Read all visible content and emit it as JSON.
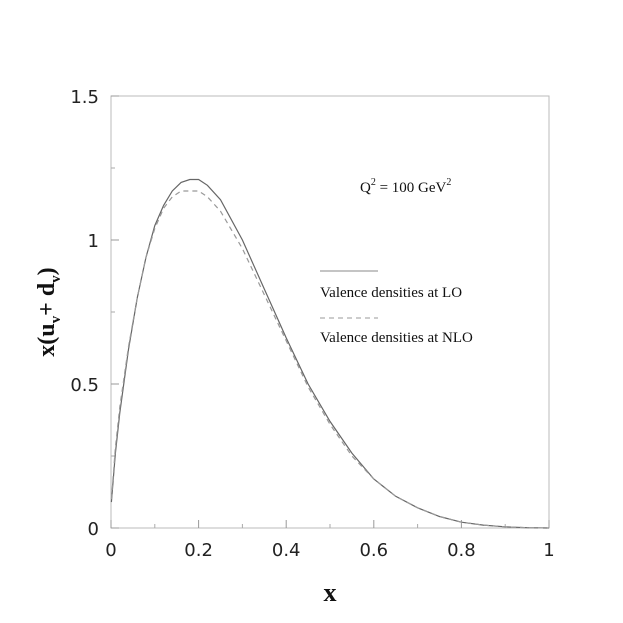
{
  "chart_data": {
    "type": "line",
    "xlabel": "x",
    "ylabel_main": "x(u",
    "ylabel_sub1": "v",
    "ylabel_mid": "+ d",
    "ylabel_sub2": "v",
    "ylabel_end": ")",
    "xlim": [
      0,
      1
    ],
    "ylim": [
      0,
      1.5
    ],
    "x_ticks": [
      0,
      0.2,
      0.4,
      0.6,
      0.8,
      1
    ],
    "x_tick_labels": [
      "0",
      "0.2",
      "0.4",
      "0.6",
      "0.8",
      "1"
    ],
    "y_ticks": [
      0,
      0.5,
      1,
      1.5
    ],
    "y_tick_labels": [
      "0",
      "0.5",
      "1",
      "1.5"
    ],
    "grid": false,
    "annotation": {
      "q": "Q",
      "q_sup": "2",
      "mid": " = 100 GeV",
      "unit_sup": "2"
    },
    "series": [
      {
        "name": "Valence densities at LO",
        "style": "solid",
        "color": "#666666",
        "x": [
          0.001,
          0.01,
          0.02,
          0.04,
          0.06,
          0.08,
          0.1,
          0.12,
          0.14,
          0.16,
          0.18,
          0.2,
          0.22,
          0.25,
          0.3,
          0.35,
          0.4,
          0.45,
          0.5,
          0.55,
          0.6,
          0.65,
          0.7,
          0.75,
          0.8,
          0.85,
          0.9,
          0.95,
          1.0
        ],
        "y": [
          0.09,
          0.26,
          0.4,
          0.62,
          0.8,
          0.94,
          1.05,
          1.12,
          1.17,
          1.2,
          1.21,
          1.21,
          1.19,
          1.14,
          1.0,
          0.83,
          0.66,
          0.5,
          0.37,
          0.26,
          0.17,
          0.11,
          0.07,
          0.04,
          0.02,
          0.01,
          0.004,
          0.001,
          0.0
        ]
      },
      {
        "name": "Valence densities at NLO",
        "style": "dashed",
        "color": "#999999",
        "x": [
          0.001,
          0.01,
          0.02,
          0.04,
          0.06,
          0.08,
          0.1,
          0.12,
          0.14,
          0.16,
          0.18,
          0.2,
          0.22,
          0.25,
          0.3,
          0.35,
          0.4,
          0.45,
          0.5,
          0.55,
          0.6,
          0.65,
          0.7,
          0.75,
          0.8,
          0.85,
          0.9,
          0.95,
          1.0
        ],
        "y": [
          0.1,
          0.28,
          0.42,
          0.63,
          0.8,
          0.94,
          1.04,
          1.11,
          1.15,
          1.17,
          1.17,
          1.17,
          1.15,
          1.1,
          0.97,
          0.81,
          0.65,
          0.49,
          0.36,
          0.25,
          0.17,
          0.11,
          0.07,
          0.04,
          0.02,
          0.01,
          0.004,
          0.001,
          0.0
        ]
      }
    ]
  }
}
